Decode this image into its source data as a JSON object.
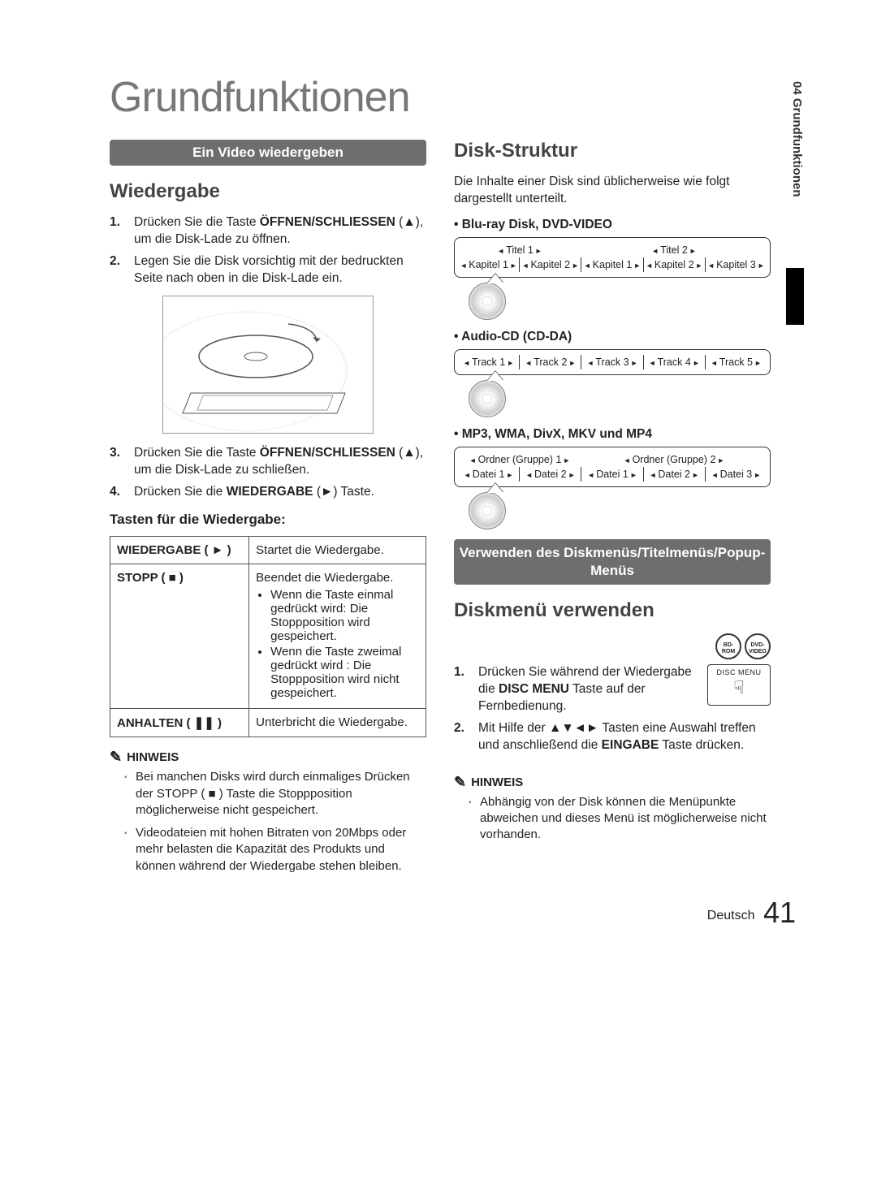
{
  "sideTab": "04   Grundfunktionen",
  "chapterTitle": "Grundfunktionen",
  "left": {
    "sectionBar": "Ein Video wiedergeben",
    "h2": "Wiedergabe",
    "steps": [
      {
        "n": "1.",
        "t": "Drücken Sie die Taste ",
        "b": "ÖFFNEN/SCHLIESSEN",
        "t2": " (▲), um die Disk-Lade zu öffnen."
      },
      {
        "n": "2.",
        "t": "Legen Sie die Disk vorsichtig mit der bedruckten Seite nach oben in die Disk-Lade ein."
      },
      {
        "n": "3.",
        "t": "Drücken Sie die Taste ",
        "b": "ÖFFNEN/SCHLIESSEN",
        "t2": " (▲), um die Disk-Lade zu schließen."
      },
      {
        "n": "4.",
        "t": "Drücken Sie die ",
        "b": "WIEDERGABE",
        "t2": " (►) Taste."
      }
    ],
    "playHeading": "Tasten für die Wiedergabe:",
    "table": {
      "rows": [
        {
          "k": "WIEDERGABE ( ► )",
          "v": "Startet die Wiedergabe."
        },
        {
          "k": "STOPP ( ■ )",
          "v_intro": "Beendet die Wiedergabe.",
          "v_b1": "Wenn die Taste einmal gedrückt wird: Die Stoppposition wird gespeichert.",
          "v_b2": "Wenn die Taste zweimal gedrückt wird : Die Stoppposition wird nicht gespeichert."
        },
        {
          "k": "ANHALTEN ( ❚❚ )",
          "v": "Unterbricht die Wiedergabe."
        }
      ]
    },
    "noteHead": "HINWEIS",
    "notes": [
      "Bei manchen Disks wird durch einmaliges Drücken der STOPP ( ■ ) Taste die Stoppposition möglicherweise nicht gespeichert.",
      "Videodateien mit hohen Bitraten von 20Mbps oder mehr belasten die Kapazität des Produkts und können während der Wiedergabe stehen bleiben."
    ]
  },
  "right": {
    "h2a": "Disk-Struktur",
    "intro": "Die Inhalte einer Disk sind üblicherweise wie folgt dargestellt unterteilt.",
    "struct1": {
      "title": "Blu-ray Disk, DVD-VIDEO",
      "top": [
        "Titel 1",
        "Titel 2"
      ],
      "bottom": [
        "Kapitel 1",
        "Kapitel 2",
        "Kapitel 1",
        "Kapitel 2",
        "Kapitel 3"
      ]
    },
    "struct2": {
      "title": "Audio-CD (CD-DA)",
      "bottom": [
        "Track 1",
        "Track 2",
        "Track 3",
        "Track 4",
        "Track 5"
      ]
    },
    "struct3": {
      "title": "MP3, WMA, DivX, MKV und MP4",
      "top": [
        "Ordner (Gruppe) 1",
        "Ordner (Gruppe) 2"
      ],
      "bottom": [
        "Datei 1",
        "Datei 2",
        "Datei 1",
        "Datei 2",
        "Datei 3"
      ]
    },
    "sectionBar": "Verwenden des Diskmenüs/Titelmenüs/Popup-Menüs",
    "h2b": "Diskmenü verwenden",
    "discIcons": [
      "BD-ROM",
      "DVD-VIDEO"
    ],
    "remoteLabel": "DISC MENU",
    "steps": [
      {
        "n": "1.",
        "html": "Drücken Sie während der Wiedergabe die <b>DISC MENU</b> Taste auf der Fernbedienung."
      },
      {
        "n": "2.",
        "html": "Mit Hilfe der ▲▼◄► Tasten eine Auswahl treffen und anschließend die <b>EINGABE</b> Taste drücken."
      }
    ],
    "noteHead": "HINWEIS",
    "notes": [
      "Abhängig von der Disk können die Menüpunkte abweichen und dieses Menü ist möglicherweise nicht vorhanden."
    ]
  },
  "footer": {
    "lang": "Deutsch",
    "page": "41"
  }
}
